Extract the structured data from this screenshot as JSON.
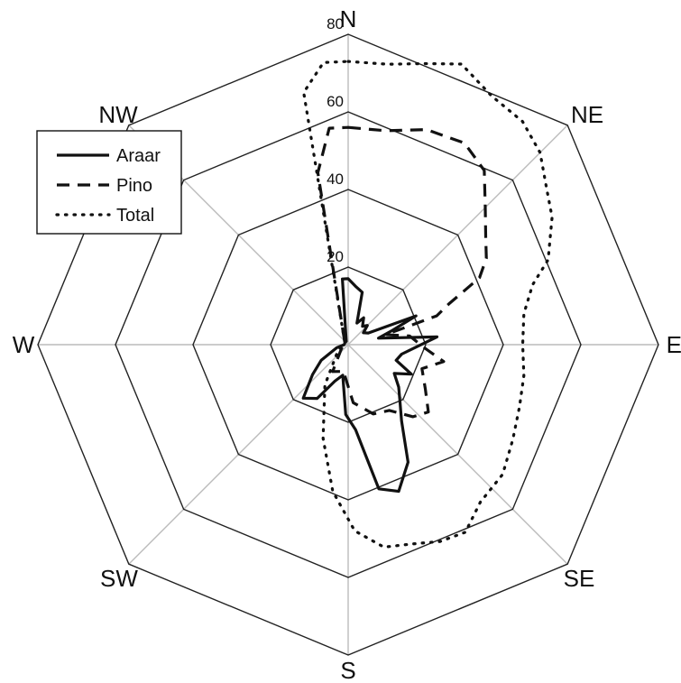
{
  "chart_data": {
    "type": "radar",
    "directions": [
      "N",
      "NE",
      "E",
      "SE",
      "S",
      "SW",
      "W",
      "NW"
    ],
    "radial_ticks": [
      20,
      40,
      60,
      80
    ],
    "rmax": 80,
    "grid": true,
    "legend_position": "top-left",
    "series": [
      {
        "name": "Araar",
        "style": "solid",
        "points": [
          [
            0,
            17
          ],
          [
            8,
            15
          ],
          [
            15,
            14
          ],
          [
            22,
            6
          ],
          [
            30,
            8
          ],
          [
            38,
            6
          ],
          [
            45,
            7
          ],
          [
            52,
            5
          ],
          [
            60,
            6
          ],
          [
            67,
            19
          ],
          [
            72,
            12
          ],
          [
            78,
            8
          ],
          [
            85,
            23
          ],
          [
            93,
            17
          ],
          [
            100,
            14
          ],
          [
            108,
            13
          ],
          [
            115,
            18
          ],
          [
            122,
            14
          ],
          [
            130,
            17
          ],
          [
            138,
            20
          ],
          [
            145,
            24
          ],
          [
            153,
            34
          ],
          [
            161,
            40
          ],
          [
            168,
            38
          ],
          [
            175,
            22
          ],
          [
            182,
            18
          ],
          [
            190,
            8
          ],
          [
            200,
            10
          ],
          [
            210,
            16
          ],
          [
            220,
            18
          ],
          [
            230,
            12
          ],
          [
            240,
            8
          ],
          [
            255,
            3
          ],
          [
            270,
            1
          ],
          [
            300,
            1
          ],
          [
            330,
            1
          ],
          [
            355,
            17
          ]
        ]
      },
      {
        "name": "Pino",
        "style": "dashed",
        "points": [
          [
            0,
            56
          ],
          [
            10,
            56
          ],
          [
            20,
            59
          ],
          [
            30,
            60
          ],
          [
            38,
            57
          ],
          [
            45,
            50
          ],
          [
            52,
            45
          ],
          [
            58,
            42
          ],
          [
            63,
            38
          ],
          [
            68,
            28
          ],
          [
            72,
            24
          ],
          [
            75,
            10
          ],
          [
            82,
            16
          ],
          [
            93,
            20
          ],
          [
            100,
            25
          ],
          [
            108,
            20
          ],
          [
            120,
            23
          ],
          [
            130,
            27
          ],
          [
            138,
            25
          ],
          [
            148,
            20
          ],
          [
            160,
            19
          ],
          [
            175,
            15
          ],
          [
            190,
            7
          ],
          [
            210,
            8
          ],
          [
            240,
            2
          ],
          [
            300,
            1
          ],
          [
            350,
            45
          ],
          [
            355,
            56
          ]
        ]
      },
      {
        "name": "Total",
        "style": "dotted",
        "points": [
          [
            0,
            73
          ],
          [
            8,
            73
          ],
          [
            15,
            75
          ],
          [
            22,
            78
          ],
          [
            30,
            74
          ],
          [
            38,
            73
          ],
          [
            45,
            70
          ],
          [
            52,
            65
          ],
          [
            58,
            62
          ],
          [
            62,
            59
          ],
          [
            67,
            56
          ],
          [
            72,
            50
          ],
          [
            80,
            46
          ],
          [
            90,
            45
          ],
          [
            100,
            46
          ],
          [
            110,
            47
          ],
          [
            120,
            49
          ],
          [
            130,
            52
          ],
          [
            140,
            53
          ],
          [
            148,
            57
          ],
          [
            155,
            56
          ],
          [
            162,
            54
          ],
          [
            170,
            53
          ],
          [
            178,
            48
          ],
          [
            186,
            38
          ],
          [
            195,
            25
          ],
          [
            210,
            12
          ],
          [
            240,
            3
          ],
          [
            300,
            1
          ],
          [
            350,
            66
          ],
          [
            355,
            73
          ]
        ]
      }
    ]
  }
}
